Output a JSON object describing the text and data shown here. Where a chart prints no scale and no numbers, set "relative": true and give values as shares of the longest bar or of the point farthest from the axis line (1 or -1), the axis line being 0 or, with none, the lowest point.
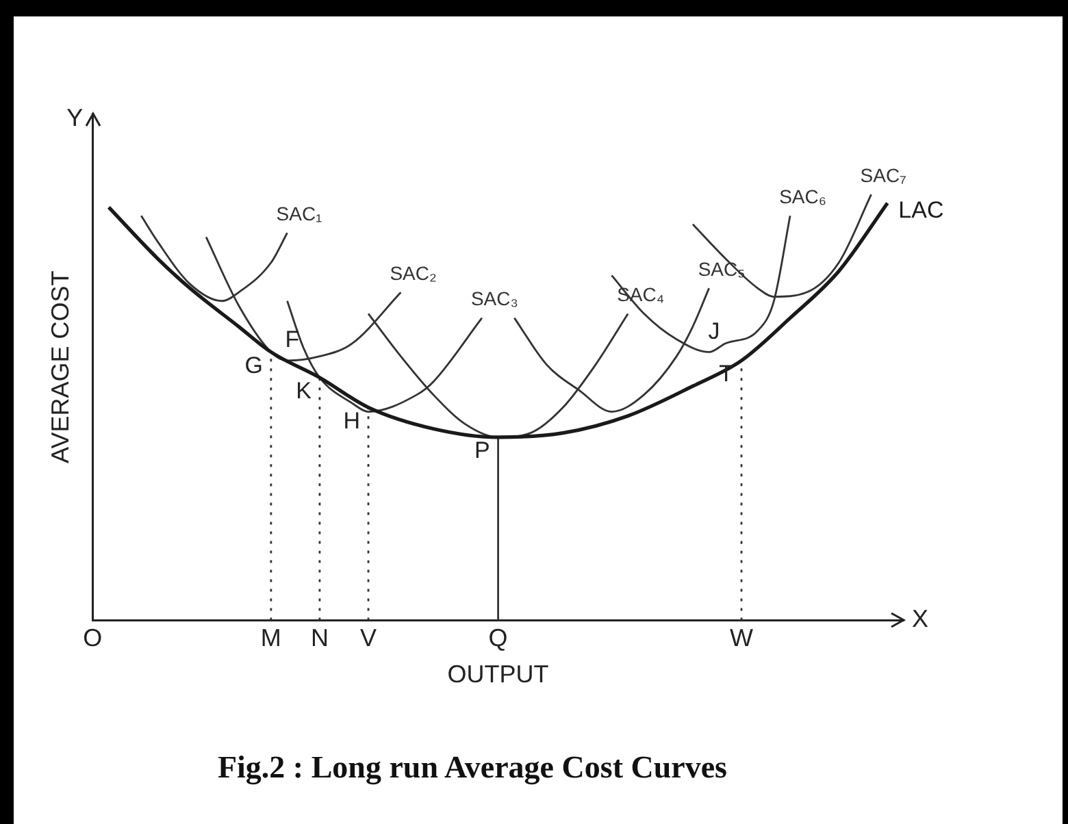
{
  "chart_data": {
    "type": "line",
    "title": "Fig.2 : Long run Average Cost Curves",
    "xlabel": "OUTPUT",
    "ylabel": "AVERAGE COST",
    "relative": true,
    "legend": false,
    "grid": false,
    "marker": "none",
    "categories": [
      "O",
      null,
      null,
      null,
      null,
      null,
      null,
      null,
      null,
      null,
      null,
      "M",
      null,
      null,
      "N",
      null,
      null,
      "V",
      null,
      null,
      null,
      null,
      null,
      null,
      null,
      "Q",
      null,
      null,
      null,
      null,
      null,
      null,
      null,
      null,
      null,
      null,
      null,
      null,
      null,
      null,
      "W",
      null,
      null,
      null,
      null,
      null,
      null,
      null,
      null,
      null,
      null
    ],
    "annotations": [
      "Y",
      "X",
      {
        "text": "G",
        "x": "M",
        "y": 0.63
      },
      {
        "text": "F",
        "y": 0.61
      },
      {
        "text": "K",
        "x": "N",
        "y": 0.57
      },
      {
        "text": "H",
        "x": "V",
        "y": 0.5
      },
      {
        "text": "P",
        "x": "Q",
        "y": 0.43
      },
      {
        "text": "J",
        "y": 0.63
      },
      {
        "text": "T",
        "x": "W",
        "y": 0.61
      }
    ],
    "series": [
      {
        "name": "LAC",
        "color": "#1a1a1a",
        "line_style": "solid",
        "values": [
          null,
          0.97,
          null,
          null,
          0.85,
          null,
          0.78,
          null,
          null,
          0.69,
          null,
          0.63,
          null,
          null,
          0.57,
          null,
          null,
          0.5,
          null,
          null,
          null,
          0.45,
          null,
          null,
          null,
          0.43,
          null,
          null,
          null,
          0.44,
          null,
          null,
          null,
          0.48,
          null,
          null,
          null,
          0.55,
          null,
          null,
          0.61,
          null,
          null,
          0.71,
          null,
          null,
          0.82,
          null,
          null,
          0.98,
          null
        ]
      },
      {
        "name": "SAC₁",
        "color": "#333333",
        "line_style": "solid",
        "values": [
          null,
          null,
          null,
          0.95,
          0.89,
          null,
          0.79,
          null,
          0.75,
          0.77,
          null,
          0.84,
          0.91,
          null,
          null,
          null,
          null,
          null,
          null,
          null,
          null,
          null,
          null,
          null,
          null,
          null,
          null,
          null,
          null,
          null,
          null,
          null,
          null,
          null,
          null,
          null,
          null,
          null,
          null,
          null,
          null,
          null,
          null,
          null,
          null,
          null,
          null,
          null,
          null,
          null,
          null
        ]
      },
      {
        "name": "SAC₂",
        "color": "#333333",
        "line_style": "solid",
        "values": [
          null,
          null,
          null,
          null,
          null,
          null,
          null,
          0.9,
          null,
          0.74,
          null,
          0.63,
          0.61,
          null,
          0.62,
          null,
          0.65,
          null,
          null,
          0.77,
          null,
          null,
          null,
          null,
          null,
          null,
          null,
          null,
          null,
          null,
          null,
          null,
          null,
          null,
          null,
          null,
          null,
          null,
          null,
          null,
          null,
          null,
          null,
          null,
          null,
          null,
          null,
          null,
          null,
          null,
          null
        ]
      },
      {
        "name": "SAC₃",
        "color": "#333333",
        "line_style": "solid",
        "values": [
          null,
          null,
          null,
          null,
          null,
          null,
          null,
          null,
          null,
          null,
          null,
          null,
          0.75,
          0.64,
          0.57,
          null,
          0.51,
          0.49,
          null,
          null,
          0.53,
          0.56,
          null,
          null,
          0.71,
          null,
          null,
          null,
          null,
          null,
          null,
          null,
          null,
          null,
          null,
          null,
          null,
          null,
          null,
          null,
          null,
          null,
          null,
          null,
          null,
          null,
          null,
          null,
          null,
          null,
          null
        ]
      },
      {
        "name": "SAC₄",
        "color": "#333333",
        "line_style": "solid",
        "values": [
          null,
          null,
          null,
          null,
          null,
          null,
          null,
          null,
          null,
          null,
          null,
          null,
          null,
          null,
          null,
          null,
          null,
          0.72,
          null,
          0.62,
          null,
          0.53,
          null,
          0.46,
          null,
          0.43,
          null,
          0.44,
          null,
          0.5,
          null,
          0.6,
          null,
          0.72,
          null,
          null,
          null,
          null,
          null,
          null,
          null,
          null,
          null,
          null,
          null,
          null,
          null,
          null,
          null,
          null,
          null
        ]
      },
      {
        "name": "SAC₅",
        "color": "#333333",
        "line_style": "solid",
        "values": [
          null,
          null,
          null,
          null,
          null,
          null,
          null,
          null,
          null,
          null,
          null,
          null,
          null,
          null,
          null,
          null,
          null,
          null,
          null,
          null,
          null,
          null,
          null,
          null,
          null,
          null,
          0.71,
          null,
          0.6,
          null,
          0.54,
          null,
          0.49,
          null,
          0.53,
          null,
          0.62,
          0.69,
          0.78,
          null,
          null,
          null,
          null,
          null,
          null,
          null,
          null,
          null,
          null,
          null,
          null
        ]
      },
      {
        "name": "SAC₆",
        "color": "#333333",
        "line_style": "solid",
        "values": [
          null,
          null,
          null,
          null,
          null,
          null,
          null,
          null,
          null,
          null,
          null,
          null,
          null,
          null,
          null,
          null,
          null,
          null,
          null,
          null,
          null,
          null,
          null,
          null,
          null,
          null,
          null,
          null,
          null,
          null,
          null,
          null,
          0.81,
          null,
          0.72,
          null,
          0.66,
          null,
          0.63,
          0.65,
          null,
          0.68,
          0.75,
          0.95,
          null,
          null,
          null,
          null,
          null,
          null,
          null
        ]
      },
      {
        "name": "SAC₇",
        "color": "#333333",
        "line_style": "solid",
        "values": [
          null,
          null,
          null,
          null,
          null,
          null,
          null,
          null,
          null,
          null,
          null,
          null,
          null,
          null,
          null,
          null,
          null,
          null,
          null,
          null,
          null,
          null,
          null,
          null,
          null,
          null,
          null,
          null,
          null,
          null,
          null,
          null,
          null,
          null,
          null,
          null,
          null,
          0.93,
          null,
          0.85,
          null,
          0.78,
          0.76,
          null,
          0.77,
          null,
          0.84,
          null,
          1,
          null,
          null
        ]
      },
      {
        "color": "#333333",
        "line_style": "dotted",
        "x": [
          "M",
          "M"
        ],
        "values": [
          0,
          0.63
        ]
      },
      {
        "color": "#333333",
        "line_style": "dotted",
        "x": [
          "N",
          "N"
        ],
        "values": [
          0,
          0.57
        ]
      },
      {
        "color": "#333333",
        "line_style": "dotted",
        "x": [
          "V",
          "V"
        ],
        "values": [
          0,
          0.5
        ]
      },
      {
        "color": "#333333",
        "line_style": "solid",
        "x": [
          "Q",
          "Q"
        ],
        "values": [
          0,
          0.43
        ]
      },
      {
        "color": "#333333",
        "line_style": "dotted",
        "x": [
          "W",
          "W"
        ],
        "values": [
          0,
          0.61
        ]
      }
    ]
  }
}
